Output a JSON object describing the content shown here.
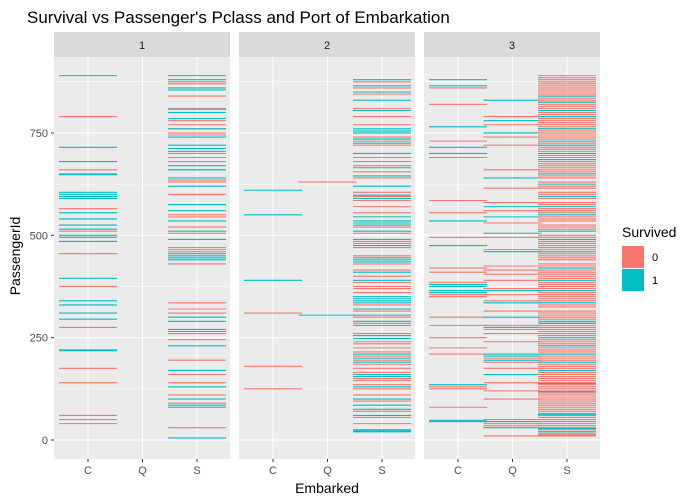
{
  "chart_data": {
    "type": "faceted-strip",
    "title": "Survival vs Passenger's Pclass and Port of Embarkation",
    "xlabel": "Embarked",
    "ylabel": "PassengerId",
    "facets": [
      "1",
      "2",
      "3"
    ],
    "categories": [
      "C",
      "Q",
      "S"
    ],
    "y_ticks": [
      0,
      250,
      500,
      750
    ],
    "ylim": [
      -45,
      935
    ],
    "grid": true,
    "legend": {
      "title": "Survived",
      "position": "right",
      "entries": [
        {
          "label": "0",
          "color": "#F8766D"
        },
        {
          "label": "1",
          "color": "#00BFC4"
        }
      ]
    },
    "colors": {
      "survived_0": "#F8766D",
      "survived_1": "#00BFC4",
      "panel_bg": "#EBEBEB",
      "strip_bg": "#D9D9D9"
    },
    "series": [
      {
        "facet": "1",
        "x": "C",
        "survived_0": [
          790,
          660,
          565,
          510,
          455,
          375,
          275,
          175,
          140,
          60,
          50,
          40
        ],
        "survived_1": [
          890,
          715,
          680,
          650,
          648,
          605,
          600,
          595,
          590,
          555,
          540,
          525,
          515,
          500,
          495,
          485,
          395,
          340,
          330,
          310,
          295,
          220,
          218
        ]
      },
      {
        "facet": "1",
        "x": "Q",
        "survived_0": [],
        "survived_1": []
      },
      {
        "facet": "1",
        "x": "S",
        "survived_0": [
          875,
          870,
          840,
          810,
          780,
          770,
          760,
          750,
          745,
          700,
          690,
          680,
          660,
          635,
          630,
          600,
          575,
          550,
          545,
          520,
          505,
          470,
          465,
          460,
          430,
          335,
          320,
          310,
          260,
          245,
          195,
          160,
          140,
          110,
          90,
          30
        ],
        "survived_1": [
          890,
          880,
          860,
          855,
          808,
          800,
          785,
          760,
          740,
          720,
          712,
          705,
          670,
          660,
          640,
          620,
          575,
          560,
          535,
          510,
          490,
          455,
          450,
          445,
          440,
          300,
          290,
          270,
          265,
          230,
          170,
          130,
          100,
          85,
          80,
          5
        ]
      },
      {
        "facet": "2",
        "x": "C",
        "survived_0": [
          310,
          180,
          125
        ],
        "survived_1": [
          610,
          550,
          390
        ]
      },
      {
        "facet": "2",
        "x": "Q",
        "survived_0": [
          630
        ],
        "survived_1": [
          305
        ]
      },
      {
        "facet": "2",
        "x": "S",
        "survived_0": [
          875,
          860,
          845,
          810,
          790,
          770,
          740,
          730,
          720,
          690,
          680,
          670,
          655,
          640,
          605,
          595,
          585,
          570,
          555,
          520,
          505,
          485,
          480,
          470,
          450,
          430,
          415,
          400,
          385,
          375,
          370,
          360,
          330,
          315,
          300,
          285,
          260,
          240,
          235,
          225,
          215,
          205,
          195,
          185,
          175,
          165,
          150,
          145,
          135,
          125,
          110,
          95,
          70,
          55,
          40
        ],
        "survived_1": [
          880,
          865,
          850,
          830,
          805,
          760,
          755,
          750,
          735,
          725,
          700,
          665,
          645,
          620,
          598,
          590,
          545,
          535,
          530,
          525,
          510,
          490,
          475,
          445,
          440,
          435,
          410,
          390,
          350,
          345,
          340,
          335,
          320,
          305,
          290,
          280,
          255,
          248,
          210,
          200,
          190,
          160,
          155,
          130,
          100,
          85,
          75,
          60,
          25,
          22,
          20
        ]
      },
      {
        "facet": "3",
        "x": "C",
        "survived_0": [
          860,
          820,
          730,
          690,
          585,
          555,
          495,
          420,
          410,
          385,
          360,
          355,
          350,
          300,
          280,
          250,
          225,
          210,
          130,
          125,
          80,
          45
        ],
        "survived_1": [
          880,
          865,
          765,
          715,
          700,
          535,
          475,
          380,
          375,
          365,
          360,
          135,
          48,
          45
        ]
      },
      {
        "facet": "3",
        "x": "Q",
        "survived_0": [
          790,
          770,
          740,
          720,
          660,
          615,
          580,
          560,
          530,
          495,
          465,
          425,
          415,
          405,
          390,
          370,
          355,
          340,
          315,
          280,
          270,
          260,
          240,
          200,
          190,
          175,
          140,
          120,
          100,
          50,
          40,
          35,
          10
        ],
        "survived_1": [
          830,
          780,
          750,
          640,
          570,
          545,
          505,
          460,
          365,
          335,
          300,
          275,
          210,
          205,
          195,
          160,
          45,
          30
        ]
      },
      {
        "facet": "3",
        "x": "S",
        "survived_0": [
          890,
          885,
          880,
          875,
          870,
          865,
          860,
          855,
          850,
          845,
          840,
          835,
          830,
          825,
          820,
          815,
          810,
          800,
          795,
          790,
          785,
          780,
          775,
          770,
          765,
          760,
          755,
          750,
          745,
          740,
          735,
          725,
          715,
          710,
          705,
          695,
          690,
          680,
          675,
          670,
          665,
          660,
          655,
          650,
          645,
          640,
          630,
          620,
          615,
          605,
          600,
          590,
          580,
          575,
          565,
          560,
          555,
          545,
          540,
          535,
          525,
          520,
          515,
          500,
          495,
          485,
          480,
          475,
          470,
          465,
          455,
          450,
          445,
          440,
          430,
          425,
          415,
          410,
          405,
          400,
          395,
          385,
          380,
          375,
          370,
          360,
          355,
          350,
          345,
          340,
          330,
          325,
          315,
          310,
          305,
          300,
          295,
          285,
          280,
          275,
          270,
          265,
          260,
          255,
          245,
          240,
          235,
          225,
          220,
          215,
          205,
          200,
          195,
          185,
          180,
          175,
          170,
          165,
          160,
          155,
          150,
          145,
          140,
          135,
          130,
          125,
          120,
          115,
          110,
          105,
          100,
          95,
          90,
          85,
          80,
          75,
          70,
          65,
          60,
          55,
          50,
          45,
          40,
          35,
          30,
          25,
          20,
          15,
          12,
          10
        ],
        "survived_1": [
          840,
          825,
          805,
          790,
          760,
          730,
          720,
          700,
          685,
          650,
          625,
          595,
          570,
          550,
          510,
          490,
          460,
          420,
          390,
          365,
          335,
          290,
          285,
          250,
          230,
          210,
          190,
          170,
          138,
          118,
          62,
          28,
          20
        ]
      }
    ]
  }
}
